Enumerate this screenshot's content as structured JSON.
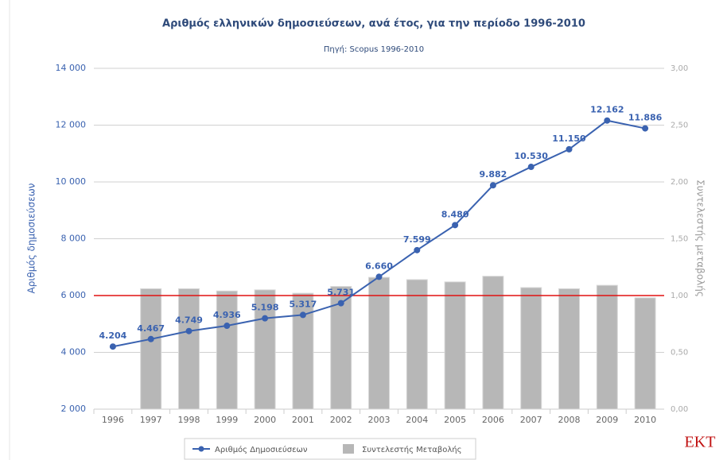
{
  "chart_data": {
    "type": "bar-line",
    "title": "Αριθμός ελληνικών δημοσιεύσεων, ανά έτος, για την περίοδο 1996-2010",
    "subtitle": "Πηγή: Scopus 1996-2010",
    "y_label": "Αριθμός δημοσιεύσεων",
    "y2_label": "Συντελεστής μεταβολής",
    "categories": [
      "1996",
      "1997",
      "1998",
      "1999",
      "2000",
      "2001",
      "2002",
      "2003",
      "2004",
      "2005",
      "2006",
      "2007",
      "2008",
      "2009",
      "2010"
    ],
    "series": [
      {
        "name": "Αριθμός Δημοσιεύσεων",
        "type": "line",
        "color": "#3a62b0",
        "values": [
          4204,
          4467,
          4749,
          4936,
          5198,
          5317,
          5731,
          6660,
          7599,
          8480,
          9882,
          10530,
          11150,
          12162,
          11886
        ],
        "value_labels": [
          "4.204",
          "4.467",
          "4.749",
          "4.936",
          "5.198",
          "5.317",
          "5.731",
          "6.660",
          "7.599",
          "8.480",
          "9.882",
          "10.530",
          "11.150",
          "12.162",
          "11.886"
        ]
      },
      {
        "name": "Συντελεστής Μεταβολής",
        "type": "bar",
        "axis": "y2",
        "color": "#b7b7b7",
        "values": [
          null,
          1.06,
          1.06,
          1.04,
          1.05,
          1.02,
          1.08,
          1.16,
          1.14,
          1.12,
          1.17,
          1.07,
          1.06,
          1.09,
          0.98
        ]
      }
    ],
    "ylim": [
      2000,
      14000
    ],
    "yticks": [
      {
        "value": 2000,
        "label": "2 000"
      },
      {
        "value": 4000,
        "label": "4 000"
      },
      {
        "value": 6000,
        "label": "6 000"
      },
      {
        "value": 8000,
        "label": "8 000"
      },
      {
        "value": 10000,
        "label": "10 000"
      },
      {
        "value": 12000,
        "label": "12 000"
      },
      {
        "value": 14000,
        "label": "14 000"
      }
    ],
    "y2lim": [
      0,
      3
    ],
    "y2ticks": [
      {
        "value": 0,
        "label": "0,00"
      },
      {
        "value": 0.5,
        "label": "0,50"
      },
      {
        "value": 1,
        "label": "1,00"
      },
      {
        "value": 1.5,
        "label": "1,50"
      },
      {
        "value": 2,
        "label": "2,00"
      },
      {
        "value": 2.5,
        "label": "2,50"
      },
      {
        "value": 3,
        "label": "3,00"
      }
    ],
    "reference_line": {
      "value": 1,
      "axis": "y2",
      "color": "#e01010"
    },
    "grid": true,
    "legend": "bottom",
    "logo": "EKT"
  }
}
